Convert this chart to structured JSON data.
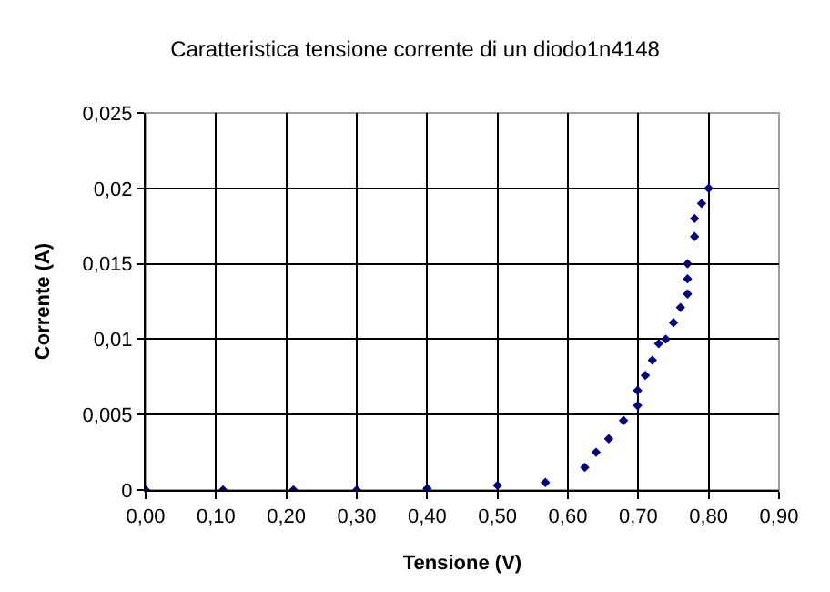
{
  "chart_data": {
    "type": "scatter",
    "title": "Caratteristica tensione corrente di un diodo1n4148",
    "xlabel": "Tensione (V)",
    "ylabel": "Corrente (A)",
    "x": [
      0,
      0.11,
      0.21,
      0.3,
      0.4,
      0.5,
      0.568,
      0.624,
      0.64,
      0.658,
      0.679,
      0.699,
      0.699,
      0.71,
      0.72,
      0.729,
      0.739,
      0.75,
      0.76,
      0.77,
      0.77,
      0.77,
      0.78,
      0.78,
      0.79,
      0.8
    ],
    "series": [
      {
        "color": "#000080",
        "values": [
          0,
          0,
          0,
          0,
          0.0001,
          0.0003,
          0.0005,
          0.0015,
          0.0025,
          0.0034,
          0.0046,
          0.0056,
          0.0066,
          0.0076,
          0.0086,
          0.0097,
          0.01,
          0.0111,
          0.0121,
          0.013,
          0.014,
          0.015,
          0.0168,
          0.018,
          0.019,
          0.02
        ]
      }
    ],
    "xlim": [
      0,
      0.9
    ],
    "ylim": [
      0,
      0.025
    ],
    "xticks": [
      {
        "value": 0,
        "label": "0,00"
      },
      {
        "value": 0.1,
        "label": "0,10"
      },
      {
        "value": 0.2,
        "label": "0,20"
      },
      {
        "value": 0.3,
        "label": "0,30"
      },
      {
        "value": 0.4,
        "label": "0,40"
      },
      {
        "value": 0.5,
        "label": "0,50"
      },
      {
        "value": 0.6,
        "label": "0,60"
      },
      {
        "value": 0.7,
        "label": "0,70"
      },
      {
        "value": 0.8,
        "label": "0,80"
      },
      {
        "value": 0.9,
        "label": "0,90"
      }
    ],
    "yticks": [
      0,
      {
        "value": 0.005,
        "label": "0,005"
      },
      {
        "value": 0.01,
        "label": "0,01"
      },
      {
        "value": 0.015,
        "label": "0,015"
      },
      {
        "value": 0.02,
        "label": "0,02"
      },
      {
        "value": 0.025,
        "label": "0,025"
      }
    ],
    "grid": true,
    "marker": "diamond"
  }
}
